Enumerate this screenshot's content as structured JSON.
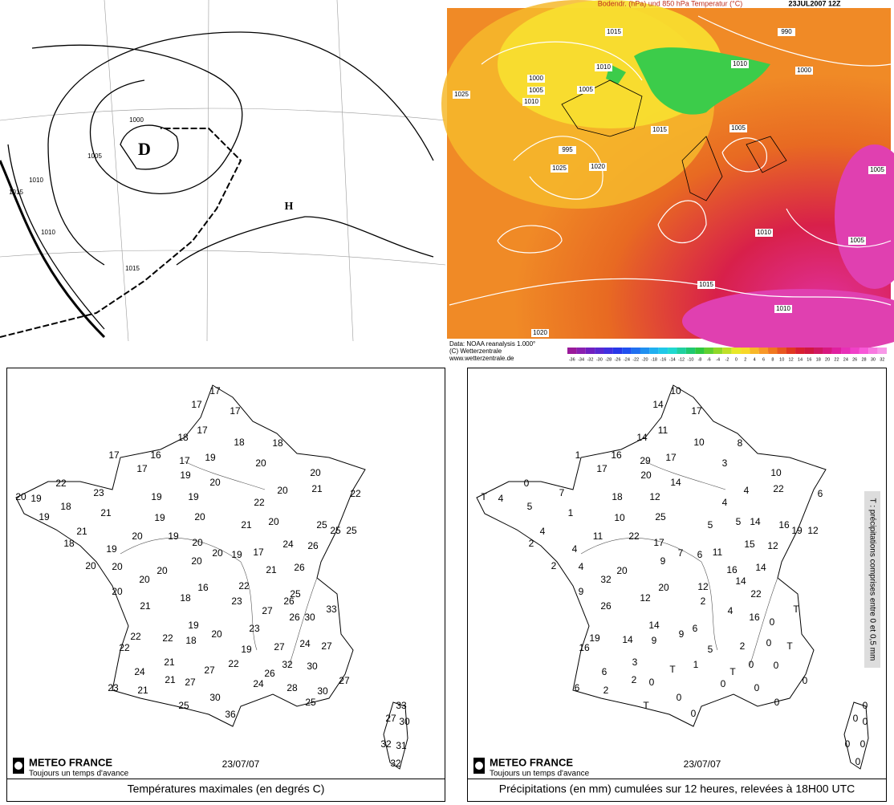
{
  "synoptic_map": {
    "isobar_labels": [
      "1000",
      "1005",
      "1010",
      "1015",
      "1010",
      "1015"
    ],
    "pressure_centres": [
      "D",
      "H"
    ]
  },
  "reanalysis_map": {
    "title": "Bodendr. (hPa) und 850 hPa Temperatur (°C)",
    "date": "23JUL2007 12Z",
    "isobar_labels": [
      "1015",
      "990",
      "1010",
      "1000",
      "1005",
      "1010",
      "1025",
      "995",
      "1005",
      "1000",
      "1010",
      "1015",
      "1005",
      "1005",
      "1025",
      "1020",
      "1015",
      "1010",
      "1005",
      "1020",
      "1010"
    ],
    "credits": [
      "Data: NOAA reanalysis 1.000°",
      "(C) Wetterzentrale",
      "www.wetterzentrale.de"
    ],
    "colorbar": [
      -36,
      -34,
      -32,
      -30,
      -28,
      -26,
      -24,
      -22,
      -20,
      -18,
      -16,
      -14,
      -12,
      -10,
      -8,
      -6,
      -4,
      -2,
      0,
      2,
      4,
      6,
      8,
      10,
      12,
      14,
      16,
      18,
      20,
      22,
      24,
      26,
      28,
      30,
      32
    ]
  },
  "temperature_map": {
    "brand": "METEO FRANCE",
    "tagline": "Toujours un temps d'avance",
    "date": "23/07/07",
    "caption": "Températures maximales (en degrés C)",
    "values": [
      17,
      17,
      17,
      18,
      17,
      18,
      18,
      17,
      16,
      17,
      19,
      17,
      20,
      19,
      20,
      22,
      20,
      19,
      23,
      19,
      20,
      19,
      20,
      21,
      22,
      18,
      19,
      21,
      19,
      22,
      20,
      21,
      20,
      25,
      25,
      25,
      21,
      18,
      20,
      19,
      20,
      24,
      26,
      19,
      20,
      20,
      19,
      17,
      20,
      20,
      20,
      21,
      26,
      22,
      20,
      16,
      20,
      26,
      25,
      23,
      21,
      18,
      27,
      26,
      30,
      33,
      19,
      23,
      22,
      22,
      18,
      20,
      24,
      27,
      22,
      19,
      27,
      21,
      32,
      30,
      22,
      24,
      27,
      26,
      21,
      27,
      24,
      30,
      27,
      23,
      21,
      30,
      28,
      25,
      25,
      36,
      33,
      27,
      30,
      32,
      31,
      32
    ]
  },
  "precipitation_map": {
    "brand": "METEO FRANCE",
    "tagline": "Toujours un temps d'avance",
    "date": "23/07/07",
    "caption": "Précipitations (en mm) cumulées sur 12 heures, relevées à 18H00 UTC",
    "note": "T : précipitations comprises entre 0 et 0,5 mm",
    "values": [
      10,
      14,
      17,
      14,
      11,
      10,
      8,
      1,
      16,
      29,
      17,
      17,
      3,
      20,
      10,
      0,
      "T",
      4,
      7,
      14,
      22,
      6,
      5,
      18,
      12,
      4,
      1,
      10,
      25,
      4,
      5,
      5,
      14,
      16,
      19,
      12,
      4,
      2,
      11,
      22,
      17,
      15,
      12,
      4,
      7,
      9,
      6,
      11,
      2,
      4,
      20,
      16,
      14,
      32,
      20,
      14,
      9,
      22,
      12,
      26,
      12,
      2,
      "T",
      4,
      16,
      0,
      14,
      6,
      19,
      14,
      9,
      9,
      0,
      "T",
      16,
      5,
      2,
      3,
      1,
      0,
      0,
      "T",
      "T",
      6,
      2,
      0,
      0,
      0,
      0,
      6,
      2,
      0,
      0,
      "T",
      0,
      0,
      0,
      0,
      0,
      0,
      0
    ]
  }
}
